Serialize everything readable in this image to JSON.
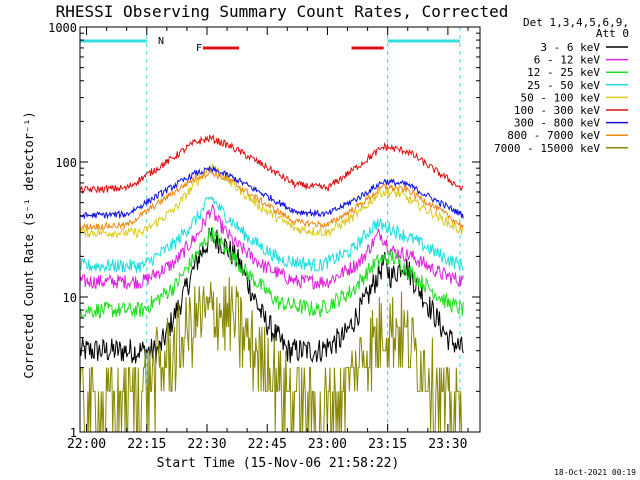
{
  "title": "RHESSI Observing Summary Count Rates, Corrected",
  "xlabel": "Start Time (15-Nov-06 21:58:22)",
  "ylabel": "Corrected Count Rate (s⁻¹ detector⁻¹)",
  "footer_timestamp": "18-Oct-2021 00:19",
  "legend_header": [
    "Det 1,3,4,5,6,9,",
    "Att 0"
  ],
  "flags": {
    "night_label": "N",
    "flare_label": "F"
  },
  "colors": {
    "night": "#33dddd",
    "flare": "#dd1111",
    "axis": "#000000"
  },
  "chart_data": {
    "type": "line",
    "y_scale": "log",
    "ylim": [
      1,
      1000
    ],
    "xlim": [
      "21:58:22",
      "23:38"
    ],
    "x_ticks": [
      "22:00",
      "22:15",
      "22:30",
      "22:45",
      "23:00",
      "23:15",
      "23:30"
    ],
    "y_ticks": [
      "1",
      "10",
      "100",
      "1000"
    ],
    "night_intervals": [
      [
        "21:58:22",
        "22:15"
      ],
      [
        "23:15",
        "23:33"
      ]
    ],
    "flare_intervals": [
      [
        "22:29",
        "22:38"
      ],
      [
        "23:06",
        "23:14"
      ]
    ],
    "series": [
      {
        "name": "3 - 6 keV",
        "color": "#000000",
        "x": [
          "21:58",
          "22:12",
          "22:18",
          "22:24",
          "22:28",
          "22:31",
          "22:34",
          "22:38",
          "22:44",
          "22:50",
          "22:58",
          "23:04",
          "23:10",
          "23:14",
          "23:16",
          "23:19",
          "23:24",
          "23:30",
          "23:34"
        ],
        "values": [
          4,
          4,
          4,
          10,
          20,
          28,
          25,
          18,
          7,
          4,
          4,
          5,
          10,
          18,
          14,
          18,
          10,
          5,
          4
        ]
      },
      {
        "name": "6 - 12 keV",
        "color": "#dd22dd",
        "x": [
          "21:58",
          "22:14",
          "22:22",
          "22:28",
          "22:31",
          "22:33",
          "22:37",
          "22:44",
          "22:52",
          "23:00",
          "23:08",
          "23:13",
          "23:16",
          "23:21",
          "23:28",
          "23:34"
        ],
        "values": [
          13,
          13,
          18,
          30,
          45,
          35,
          25,
          17,
          13,
          13,
          18,
          30,
          22,
          20,
          15,
          13
        ]
      },
      {
        "name": "12 - 25 keV",
        "color": "#22dd22",
        "x": [
          "21:58",
          "22:14",
          "22:22",
          "22:28",
          "22:31",
          "22:34",
          "22:40",
          "22:48",
          "22:58",
          "23:06",
          "23:12",
          "23:16",
          "23:22",
          "23:30",
          "23:34"
        ],
        "values": [
          8,
          8,
          12,
          22,
          30,
          24,
          15,
          9,
          8,
          11,
          18,
          20,
          14,
          9,
          8
        ]
      },
      {
        "name": "25 - 50 keV",
        "color": "#22dddd",
        "x": [
          "21:58",
          "22:14",
          "22:22",
          "22:28",
          "22:31",
          "22:34",
          "22:40",
          "22:48",
          "22:58",
          "23:06",
          "23:12",
          "23:16",
          "23:22",
          "23:30",
          "23:34"
        ],
        "values": [
          17,
          17,
          25,
          40,
          55,
          42,
          28,
          19,
          17,
          22,
          35,
          32,
          26,
          19,
          17
        ]
      },
      {
        "name": "50 - 100 keV",
        "color": "#ddcc22",
        "x": [
          "21:58",
          "22:14",
          "22:22",
          "22:28",
          "22:31",
          "22:36",
          "22:44",
          "22:52",
          "23:00",
          "23:08",
          "23:13",
          "23:18",
          "23:26",
          "23:34"
        ],
        "values": [
          30,
          30,
          45,
          75,
          95,
          70,
          45,
          32,
          30,
          42,
          60,
          58,
          42,
          30
        ]
      },
      {
        "name": "100 - 300 keV",
        "color": "#dd1111",
        "x": [
          "21:58",
          "22:10",
          "22:20",
          "22:27",
          "22:31",
          "22:36",
          "22:44",
          "22:52",
          "23:00",
          "23:08",
          "23:14",
          "23:20",
          "23:28",
          "23:34"
        ],
        "values": [
          62,
          64,
          100,
          140,
          150,
          130,
          95,
          68,
          64,
          95,
          130,
          120,
          82,
          62
        ]
      },
      {
        "name": "300 - 800 keV",
        "color": "#1111dd",
        "x": [
          "21:58",
          "22:10",
          "22:20",
          "22:27",
          "22:31",
          "22:36",
          "22:44",
          "22:52",
          "23:00",
          "23:08",
          "23:14",
          "23:20",
          "23:28",
          "23:34"
        ],
        "values": [
          40,
          41,
          62,
          82,
          88,
          78,
          58,
          43,
          41,
          55,
          72,
          68,
          50,
          40
        ]
      },
      {
        "name": "800 - 7000 keV",
        "color": "#ee8811",
        "x": [
          "21:58",
          "22:10",
          "22:20",
          "22:27",
          "22:31",
          "22:36",
          "22:44",
          "22:52",
          "23:00",
          "23:08",
          "23:14",
          "23:20",
          "23:28",
          "23:34"
        ],
        "values": [
          33,
          34,
          55,
          76,
          84,
          72,
          50,
          36,
          34,
          48,
          66,
          62,
          44,
          33
        ]
      },
      {
        "name": "7000 - 15000 keV",
        "color": "#888800",
        "x": [
          "21:58",
          "22:12",
          "22:18",
          "22:24",
          "22:28",
          "22:32",
          "22:36",
          "22:42",
          "22:50",
          "22:58",
          "23:04",
          "23:10",
          "23:14",
          "23:18",
          "23:24",
          "23:30",
          "23:34"
        ],
        "values": [
          1.5,
          1.8,
          3,
          5,
          7,
          8,
          7,
          4,
          2,
          1.5,
          2,
          4,
          6,
          6,
          3,
          1.6,
          1.5
        ]
      }
    ]
  }
}
